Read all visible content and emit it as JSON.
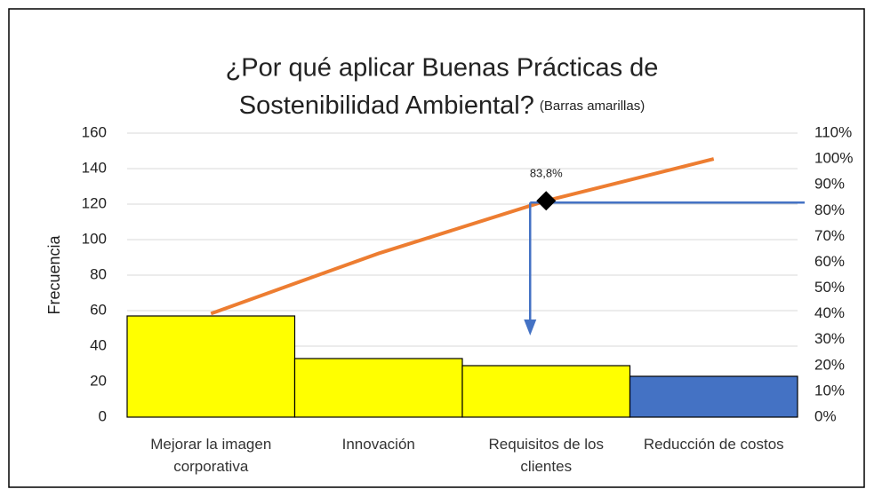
{
  "chart_data": {
    "type": "pareto",
    "title": [
      "¿Por qué aplicar Buenas Prácticas de",
      "Sostenibilidad Ambiental?"
    ],
    "subtitle": "(Barras amarillas)",
    "y_label": "Frecuencia",
    "categories": [
      "Mejorar la imagen corporativa",
      "Innovación",
      "Requisitos de los clientes",
      "Reducción de costos"
    ],
    "series": [
      {
        "type": "bar",
        "colors": [
          "#ffff00",
          "#ffff00",
          "#ffff00",
          "#4472c4"
        ],
        "values": [
          57,
          33,
          29,
          23
        ]
      },
      {
        "type": "line",
        "axis": "y2",
        "color": "#ed7d31",
        "values": [
          40.1,
          63.4,
          83.8,
          100
        ],
        "value_labels": [
          null,
          null,
          "83,8%",
          null
        ]
      }
    ],
    "ylim": [
      0,
      160
    ],
    "yticks": [
      0,
      20,
      40,
      60,
      80,
      100,
      120,
      140,
      160
    ],
    "y2lim": [
      0,
      110
    ],
    "y2ticks": [
      {
        "value": 0,
        "label": "0%"
      },
      {
        "value": 10,
        "label": "10%"
      },
      {
        "value": 20,
        "label": "20%"
      },
      {
        "value": 30,
        "label": "30%"
      },
      {
        "value": 40,
        "label": "40%"
      },
      {
        "value": 50,
        "label": "50%"
      },
      {
        "value": 60,
        "label": "60%"
      },
      {
        "value": 70,
        "label": "70%"
      },
      {
        "value": 80,
        "label": "80%"
      },
      {
        "value": 90,
        "label": "90%"
      },
      {
        "value": 100,
        "label": "100%"
      },
      {
        "value": 110,
        "label": "110%"
      }
    ],
    "grid": true,
    "annotation_color": "#4472c4"
  }
}
